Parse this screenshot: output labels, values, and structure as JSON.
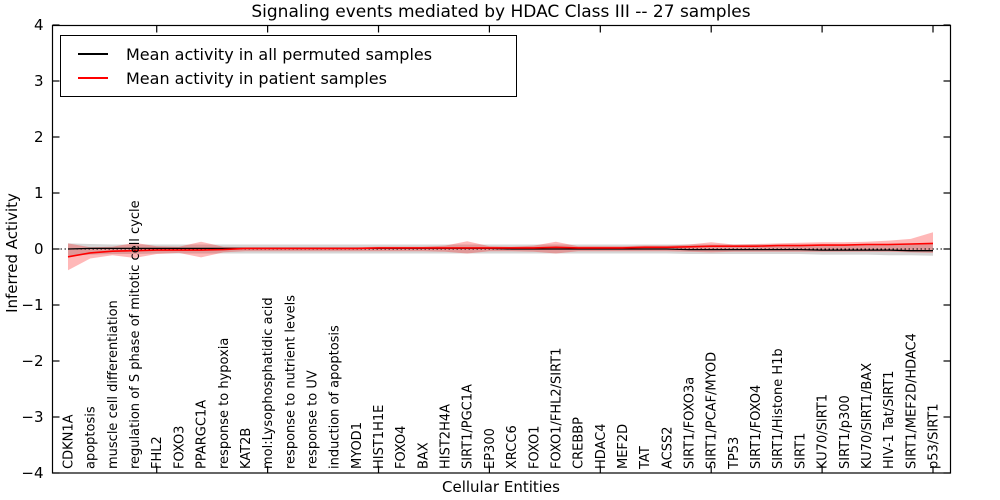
{
  "title": "Signaling events mediated by HDAC Class III -- 27 samples",
  "xlabel": "Cellular Entities",
  "ylabel": "Inferred Activity",
  "legend": [
    {
      "label": "Mean activity in all permuted samples",
      "color": "#000000"
    },
    {
      "label": "Mean activity in patient samples",
      "color": "#ff0000"
    }
  ],
  "colors": {
    "patient_line": "#ff0000",
    "permuted_line": "#000000",
    "patient_band": "#ff0000",
    "permuted_band": "#bfbfbf",
    "zero_line": "#000000",
    "axis": "#000000"
  },
  "chart_data": {
    "type": "line",
    "title": "Signaling events mediated by HDAC Class III -- 27 samples",
    "xlabel": "Cellular Entities",
    "ylabel": "Inferred Activity",
    "ylim": [
      -4,
      4
    ],
    "ytick_labels": [
      "4",
      "3",
      "2",
      "1",
      "0",
      "−1",
      "−2",
      "−3",
      "−4"
    ],
    "ytick_values": [
      4,
      3,
      2,
      1,
      0,
      -1,
      -2,
      -3,
      -4
    ],
    "grid": "dotted zero line only",
    "legend_position": "upper left",
    "x_major_tick_indices": [
      4,
      9,
      14,
      19,
      24,
      29,
      34,
      39
    ],
    "categories": [
      "CDKN1A",
      "apoptosis",
      "muscle cell differentiation",
      "regulation of S phase of mitotic cell cycle",
      "FHL2",
      "FOXO3",
      "PPARGC1A",
      "response to hypoxia",
      "KAT2B",
      "mol:Lysophosphatidic acid",
      "response to nutrient levels",
      "response to UV",
      "induction of apoptosis",
      "MYOD1",
      "HIST1H1E",
      "FOXO4",
      "BAX",
      "HIST2H4A",
      "SIRT1/PGC1A",
      "EP300",
      "XRCC6",
      "FOXO1",
      "FOXO1/FHL2/SIRT1",
      "CREBBP",
      "HDAC4",
      "MEF2D",
      "TAT",
      "ACSS2",
      "SIRT1/FOXO3a",
      "SIRT1/PCAF/MYOD",
      "TP53",
      "SIRT1/FOXO4",
      "SIRT1/Histone H1b",
      "SIRT1",
      "KU70/SIRT1",
      "SIRT1/p300",
      "KU70/SIRT1/BAX",
      "HIV-1 Tat/SIRT1",
      "SIRT1/MEF2D/HDAC4",
      "p53/SIRT1"
    ],
    "series": [
      {
        "name": "Mean activity in all permuted samples",
        "color": "#000000",
        "values": [
          0.0,
          0.01,
          0.01,
          0.01,
          0.01,
          0.01,
          0.01,
          0.01,
          0.01,
          0.01,
          0.01,
          0.01,
          0.01,
          0.01,
          0.01,
          0.01,
          0.01,
          0.01,
          0.01,
          0.01,
          0.0,
          0.0,
          0.0,
          0.0,
          0.0,
          0.0,
          0.0,
          0.0,
          -0.01,
          -0.01,
          -0.01,
          -0.01,
          -0.01,
          -0.01,
          -0.02,
          -0.02,
          -0.02,
          -0.02,
          -0.03,
          -0.03
        ]
      },
      {
        "name": "Mean activity in patient samples",
        "color": "#ff0000",
        "values": [
          -0.14,
          -0.07,
          -0.04,
          -0.03,
          -0.02,
          -0.02,
          -0.02,
          -0.01,
          0.01,
          0.01,
          0.01,
          0.01,
          0.01,
          0.01,
          0.02,
          0.02,
          0.02,
          0.02,
          0.02,
          0.02,
          0.02,
          0.02,
          0.03,
          0.02,
          0.02,
          0.02,
          0.03,
          0.03,
          0.04,
          0.05,
          0.05,
          0.05,
          0.06,
          0.06,
          0.07,
          0.07,
          0.08,
          0.08,
          0.09,
          0.1
        ]
      }
    ],
    "bands": [
      {
        "name": "permuted samples band",
        "color": "#bfbfbf",
        "opacity": 0.65,
        "upper": [
          0.1,
          0.09,
          0.08,
          0.08,
          0.08,
          0.08,
          0.08,
          0.08,
          0.08,
          0.08,
          0.08,
          0.08,
          0.08,
          0.08,
          0.08,
          0.08,
          0.08,
          0.08,
          0.08,
          0.08,
          0.08,
          0.08,
          0.08,
          0.08,
          0.08,
          0.08,
          0.08,
          0.08,
          0.08,
          0.08,
          0.08,
          0.08,
          0.08,
          0.08,
          0.08,
          0.08,
          0.08,
          0.09,
          0.09,
          0.1
        ],
        "lower": [
          -0.12,
          -0.1,
          -0.09,
          -0.09,
          -0.08,
          -0.08,
          -0.08,
          -0.08,
          -0.08,
          -0.08,
          -0.08,
          -0.08,
          -0.08,
          -0.08,
          -0.08,
          -0.08,
          -0.08,
          -0.08,
          -0.08,
          -0.08,
          -0.08,
          -0.08,
          -0.08,
          -0.08,
          -0.08,
          -0.08,
          -0.08,
          -0.08,
          -0.09,
          -0.09,
          -0.09,
          -0.09,
          -0.09,
          -0.09,
          -0.1,
          -0.1,
          -0.1,
          -0.11,
          -0.11,
          -0.12
        ]
      },
      {
        "name": "patient samples band",
        "color": "#ff0000",
        "opacity": 0.28,
        "upper": [
          0.1,
          0.03,
          0.04,
          0.11,
          0.05,
          0.04,
          0.13,
          0.04,
          0.03,
          0.03,
          0.03,
          0.03,
          0.03,
          0.03,
          0.04,
          0.04,
          0.04,
          0.06,
          0.14,
          0.05,
          0.04,
          0.06,
          0.13,
          0.05,
          0.05,
          0.05,
          0.06,
          0.06,
          0.08,
          0.12,
          0.08,
          0.09,
          0.1,
          0.11,
          0.12,
          0.12,
          0.13,
          0.15,
          0.18,
          0.3
        ],
        "lower": [
          -0.38,
          -0.17,
          -0.11,
          -0.16,
          -0.09,
          -0.07,
          -0.15,
          -0.06,
          -0.04,
          -0.04,
          -0.04,
          -0.04,
          -0.04,
          -0.04,
          -0.04,
          -0.04,
          -0.04,
          -0.05,
          -0.08,
          -0.04,
          -0.04,
          -0.05,
          -0.08,
          -0.04,
          -0.04,
          -0.04,
          -0.04,
          -0.04,
          -0.05,
          -0.06,
          -0.05,
          -0.05,
          -0.05,
          -0.05,
          -0.05,
          -0.05,
          -0.05,
          -0.05,
          -0.06,
          -0.07
        ]
      }
    ]
  }
}
